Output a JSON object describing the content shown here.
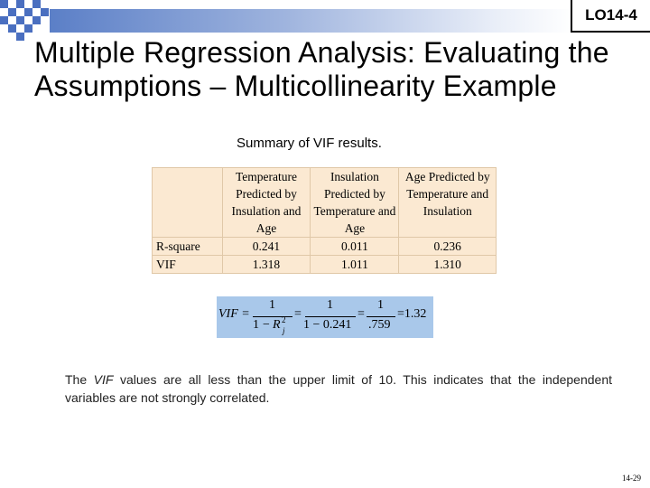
{
  "header": {
    "lo_label": "LO14-4"
  },
  "slide": {
    "title": "Multiple Regression Analysis: Evaluating the Assumptions – Multicollinearity Example",
    "subtitle": "Summary of VIF results."
  },
  "vif_table": {
    "columns": [
      "",
      "Temperature Predicted by Insulation and Age",
      "Insulation Predicted by Temperature and Age",
      "Age Predicted by Temperature and Insulation"
    ],
    "rows": [
      {
        "label": "R-square",
        "values": [
          "0.241",
          "0.011",
          "0.236"
        ]
      },
      {
        "label": "VIF",
        "values": [
          "1.318",
          "1.011",
          "1.310"
        ]
      }
    ]
  },
  "formula": {
    "lhs": "VIF =",
    "num1": "1",
    "den1_a": "1",
    "den1_minus": "−",
    "den1_b": "R",
    "den1_b_sup": "2",
    "den1_b_sub": "j",
    "eq2": "=",
    "num2": "1",
    "den2": "1 − 0.241",
    "eq3": "=",
    "num3": "1",
    "den3": ".759",
    "result": "=1.32"
  },
  "body": {
    "text_before": "The ",
    "text_italic": "VIF",
    "text_after": " values are all less than the upper limit of 10. This indicates that the independent variables are not strongly correlated."
  },
  "footer": {
    "page_number": "14-29"
  }
}
